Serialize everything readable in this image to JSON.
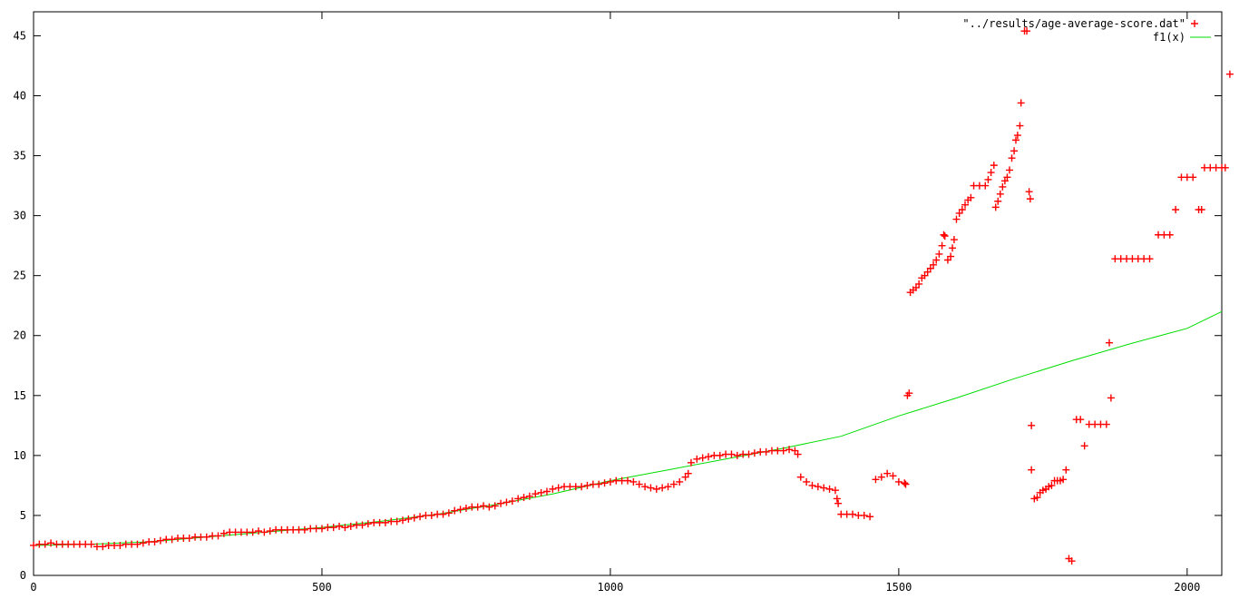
{
  "chart_data": {
    "type": "scatter",
    "title": "",
    "xlabel": "",
    "ylabel": "",
    "xlim": [
      0,
      2060
    ],
    "ylim": [
      0,
      47
    ],
    "xticks": [
      0,
      500,
      1000,
      1500,
      2000
    ],
    "yticks": [
      0,
      5,
      10,
      15,
      20,
      25,
      30,
      35,
      40,
      45
    ],
    "grid": false,
    "legend_position": "top-right",
    "colors": {
      "data": "#ff0000",
      "fit": "#00dd00",
      "axis": "#000000"
    },
    "series": [
      {
        "name": "\"../results/age-average-score.dat\"",
        "type": "scatter",
        "marker": "plus",
        "color": "#ff0000",
        "points": [
          [
            0,
            2.5
          ],
          [
            10,
            2.6
          ],
          [
            20,
            2.6
          ],
          [
            30,
            2.7
          ],
          [
            40,
            2.6
          ],
          [
            50,
            2.6
          ],
          [
            60,
            2.6
          ],
          [
            70,
            2.6
          ],
          [
            80,
            2.6
          ],
          [
            90,
            2.6
          ],
          [
            100,
            2.6
          ],
          [
            110,
            2.4
          ],
          [
            120,
            2.4
          ],
          [
            130,
            2.5
          ],
          [
            140,
            2.5
          ],
          [
            150,
            2.5
          ],
          [
            160,
            2.6
          ],
          [
            170,
            2.6
          ],
          [
            180,
            2.6
          ],
          [
            190,
            2.7
          ],
          [
            200,
            2.8
          ],
          [
            210,
            2.8
          ],
          [
            220,
            2.9
          ],
          [
            230,
            3.0
          ],
          [
            240,
            3.0
          ],
          [
            250,
            3.1
          ],
          [
            260,
            3.1
          ],
          [
            270,
            3.1
          ],
          [
            280,
            3.2
          ],
          [
            290,
            3.2
          ],
          [
            300,
            3.2
          ],
          [
            310,
            3.3
          ],
          [
            320,
            3.3
          ],
          [
            330,
            3.5
          ],
          [
            340,
            3.6
          ],
          [
            350,
            3.6
          ],
          [
            360,
            3.6
          ],
          [
            370,
            3.6
          ],
          [
            380,
            3.6
          ],
          [
            390,
            3.7
          ],
          [
            400,
            3.6
          ],
          [
            410,
            3.7
          ],
          [
            420,
            3.8
          ],
          [
            430,
            3.8
          ],
          [
            440,
            3.8
          ],
          [
            450,
            3.8
          ],
          [
            460,
            3.8
          ],
          [
            470,
            3.8
          ],
          [
            480,
            3.9
          ],
          [
            490,
            3.9
          ],
          [
            500,
            3.9
          ],
          [
            510,
            4.0
          ],
          [
            520,
            4.0
          ],
          [
            530,
            4.1
          ],
          [
            540,
            4.0
          ],
          [
            550,
            4.1
          ],
          [
            560,
            4.2
          ],
          [
            570,
            4.2
          ],
          [
            580,
            4.3
          ],
          [
            590,
            4.4
          ],
          [
            600,
            4.4
          ],
          [
            610,
            4.4
          ],
          [
            620,
            4.5
          ],
          [
            630,
            4.5
          ],
          [
            640,
            4.6
          ],
          [
            650,
            4.7
          ],
          [
            660,
            4.8
          ],
          [
            670,
            4.9
          ],
          [
            680,
            5.0
          ],
          [
            690,
            5.0
          ],
          [
            700,
            5.1
          ],
          [
            710,
            5.1
          ],
          [
            720,
            5.2
          ],
          [
            730,
            5.4
          ],
          [
            740,
            5.5
          ],
          [
            750,
            5.6
          ],
          [
            760,
            5.7
          ],
          [
            770,
            5.7
          ],
          [
            780,
            5.8
          ],
          [
            790,
            5.7
          ],
          [
            800,
            5.8
          ],
          [
            810,
            6.0
          ],
          [
            820,
            6.1
          ],
          [
            830,
            6.2
          ],
          [
            840,
            6.4
          ],
          [
            850,
            6.5
          ],
          [
            860,
            6.6
          ],
          [
            870,
            6.8
          ],
          [
            880,
            6.9
          ],
          [
            890,
            7.0
          ],
          [
            900,
            7.2
          ],
          [
            910,
            7.3
          ],
          [
            920,
            7.4
          ],
          [
            930,
            7.4
          ],
          [
            940,
            7.4
          ],
          [
            950,
            7.4
          ],
          [
            960,
            7.5
          ],
          [
            970,
            7.6
          ],
          [
            980,
            7.6
          ],
          [
            990,
            7.7
          ],
          [
            1000,
            7.8
          ],
          [
            1010,
            7.9
          ],
          [
            1020,
            7.9
          ],
          [
            1030,
            7.9
          ],
          [
            1040,
            7.8
          ],
          [
            1050,
            7.6
          ],
          [
            1060,
            7.4
          ],
          [
            1070,
            7.3
          ],
          [
            1080,
            7.2
          ],
          [
            1090,
            7.3
          ],
          [
            1100,
            7.4
          ],
          [
            1110,
            7.6
          ],
          [
            1120,
            7.8
          ],
          [
            1130,
            8.2
          ],
          [
            1135,
            8.5
          ],
          [
            1140,
            9.4
          ],
          [
            1150,
            9.7
          ],
          [
            1160,
            9.8
          ],
          [
            1170,
            9.9
          ],
          [
            1180,
            10.0
          ],
          [
            1190,
            10.0
          ],
          [
            1200,
            10.1
          ],
          [
            1210,
            10.1
          ],
          [
            1220,
            10.0
          ],
          [
            1230,
            10.1
          ],
          [
            1240,
            10.1
          ],
          [
            1250,
            10.2
          ],
          [
            1260,
            10.3
          ],
          [
            1270,
            10.3
          ],
          [
            1280,
            10.4
          ],
          [
            1290,
            10.4
          ],
          [
            1300,
            10.4
          ],
          [
            1310,
            10.5
          ],
          [
            1320,
            10.4
          ],
          [
            1325,
            10.1
          ],
          [
            1330,
            8.2
          ],
          [
            1340,
            7.8
          ],
          [
            1350,
            7.5
          ],
          [
            1360,
            7.4
          ],
          [
            1370,
            7.3
          ],
          [
            1380,
            7.2
          ],
          [
            1390,
            7.1
          ],
          [
            1393,
            6.4
          ],
          [
            1395,
            6.0
          ],
          [
            1400,
            5.1
          ],
          [
            1410,
            5.1
          ],
          [
            1420,
            5.1
          ],
          [
            1430,
            5.0
          ],
          [
            1440,
            5.0
          ],
          [
            1450,
            4.9
          ],
          [
            1460,
            8.0
          ],
          [
            1470,
            8.2
          ],
          [
            1480,
            8.5
          ],
          [
            1490,
            8.3
          ],
          [
            1500,
            7.8
          ],
          [
            1510,
            7.7
          ],
          [
            1512,
            7.6
          ],
          [
            1515,
            15.0
          ],
          [
            1518,
            15.2
          ],
          [
            1520,
            23.6
          ],
          [
            1525,
            23.8
          ],
          [
            1530,
            24.0
          ],
          [
            1535,
            24.3
          ],
          [
            1540,
            24.8
          ],
          [
            1545,
            25.0
          ],
          [
            1550,
            25.3
          ],
          [
            1555,
            25.6
          ],
          [
            1560,
            25.9
          ],
          [
            1565,
            26.3
          ],
          [
            1570,
            26.8
          ],
          [
            1575,
            27.5
          ],
          [
            1578,
            28.4
          ],
          [
            1580,
            28.3
          ],
          [
            1585,
            26.3
          ],
          [
            1590,
            26.6
          ],
          [
            1593,
            27.3
          ],
          [
            1596,
            28.0
          ],
          [
            1600,
            29.7
          ],
          [
            1605,
            30.2
          ],
          [
            1610,
            30.5
          ],
          [
            1615,
            30.9
          ],
          [
            1620,
            31.3
          ],
          [
            1625,
            31.5
          ],
          [
            1630,
            32.5
          ],
          [
            1640,
            32.5
          ],
          [
            1650,
            32.5
          ],
          [
            1655,
            33.0
          ],
          [
            1660,
            33.6
          ],
          [
            1665,
            34.2
          ],
          [
            1668,
            30.7
          ],
          [
            1672,
            31.2
          ],
          [
            1676,
            31.8
          ],
          [
            1680,
            32.4
          ],
          [
            1684,
            32.9
          ],
          [
            1688,
            33.2
          ],
          [
            1692,
            33.8
          ],
          [
            1696,
            34.8
          ],
          [
            1700,
            35.4
          ],
          [
            1703,
            36.3
          ],
          [
            1706,
            36.7
          ],
          [
            1710,
            37.5
          ],
          [
            1712,
            39.4
          ],
          [
            1718,
            45.4
          ],
          [
            1722,
            45.4
          ],
          [
            1726,
            32.0
          ],
          [
            1728,
            31.4
          ],
          [
            1730,
            12.5
          ],
          [
            1730,
            8.8
          ],
          [
            1735,
            6.4
          ],
          [
            1740,
            6.5
          ],
          [
            1745,
            6.9
          ],
          [
            1750,
            7.1
          ],
          [
            1755,
            7.2
          ],
          [
            1760,
            7.4
          ],
          [
            1765,
            7.5
          ],
          [
            1770,
            7.9
          ],
          [
            1775,
            7.9
          ],
          [
            1780,
            7.9
          ],
          [
            1785,
            8.0
          ],
          [
            1790,
            8.8
          ],
          [
            1795,
            1.4
          ],
          [
            1800,
            1.2
          ],
          [
            1808,
            13.0
          ],
          [
            1815,
            13.0
          ],
          [
            1822,
            10.8
          ],
          [
            1830,
            12.6
          ],
          [
            1840,
            12.6
          ],
          [
            1850,
            12.6
          ],
          [
            1860,
            12.6
          ],
          [
            1865,
            19.4
          ],
          [
            1868,
            14.8
          ],
          [
            1875,
            26.4
          ],
          [
            1885,
            26.4
          ],
          [
            1895,
            26.4
          ],
          [
            1905,
            26.4
          ],
          [
            1915,
            26.4
          ],
          [
            1925,
            26.4
          ],
          [
            1935,
            26.4
          ],
          [
            1950,
            28.4
          ],
          [
            1960,
            28.4
          ],
          [
            1970,
            28.4
          ],
          [
            1980,
            30.5
          ],
          [
            1990,
            33.2
          ],
          [
            2000,
            33.2
          ],
          [
            2010,
            33.2
          ],
          [
            2020,
            30.5
          ],
          [
            2025,
            30.5
          ],
          [
            2030,
            34.0
          ],
          [
            2040,
            34.0
          ],
          [
            2050,
            34.0
          ],
          [
            2060,
            34.0
          ],
          [
            2066,
            34.0
          ],
          [
            2074,
            41.8
          ]
        ]
      },
      {
        "name": "f1(x)",
        "type": "line",
        "color": "#00dd00",
        "points": [
          [
            0,
            2.5
          ],
          [
            100,
            2.6
          ],
          [
            200,
            2.8
          ],
          [
            300,
            3.2
          ],
          [
            400,
            3.6
          ],
          [
            500,
            4.0
          ],
          [
            600,
            4.5
          ],
          [
            700,
            5.1
          ],
          [
            800,
            5.9
          ],
          [
            900,
            6.8
          ],
          [
            1000,
            7.9
          ],
          [
            1100,
            8.8
          ],
          [
            1200,
            9.7
          ],
          [
            1300,
            10.6
          ],
          [
            1400,
            11.6
          ],
          [
            1500,
            13.3
          ],
          [
            1600,
            14.8
          ],
          [
            1700,
            16.4
          ],
          [
            1800,
            17.9
          ],
          [
            1900,
            19.3
          ],
          [
            2000,
            20.6
          ],
          [
            2060,
            22.0
          ]
        ]
      }
    ]
  }
}
